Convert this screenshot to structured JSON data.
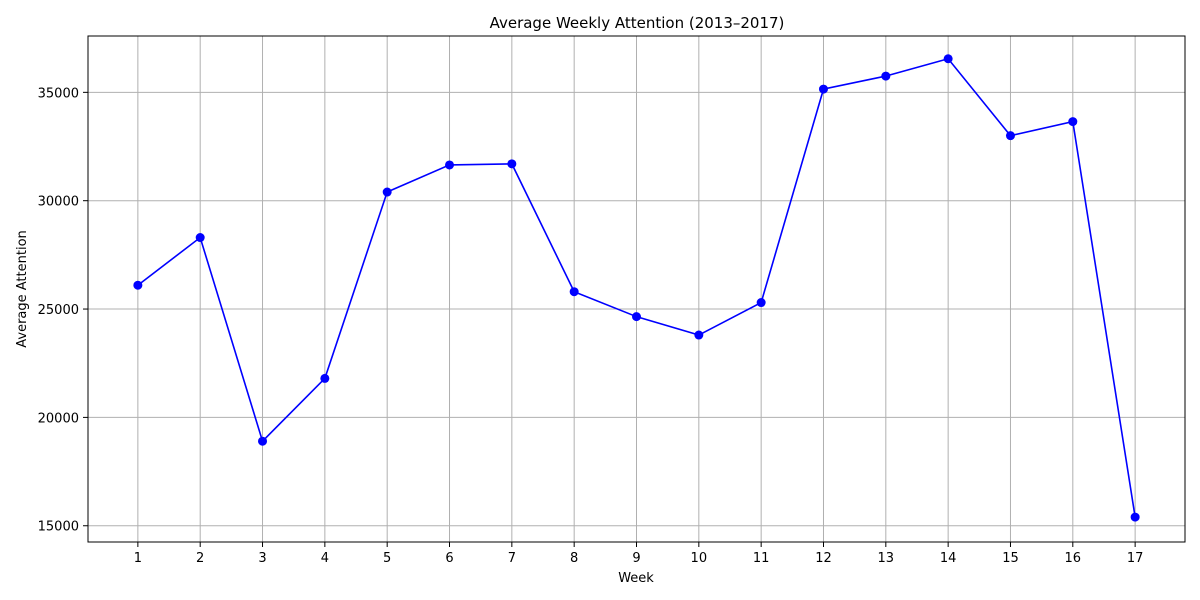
{
  "chart_data": {
    "type": "line",
    "title": "Average Weekly Attention (2013–2017)",
    "xlabel": "Week",
    "ylabel": "Average Attention",
    "x": [
      1,
      2,
      3,
      4,
      5,
      6,
      7,
      8,
      9,
      10,
      11,
      12,
      13,
      14,
      15,
      16,
      17
    ],
    "x_tick_labels": [
      "1",
      "2",
      "3",
      "4",
      "5",
      "6",
      "7",
      "8",
      "9",
      "10",
      "11",
      "12",
      "13",
      "14",
      "15",
      "16",
      "17"
    ],
    "series": [
      {
        "values": [
          26100,
          28300,
          18900,
          21800,
          30400,
          31650,
          31700,
          25800,
          24650,
          23800,
          25300,
          35150,
          35750,
          36550,
          33000,
          33650,
          15400
        ],
        "color": "#0000ff",
        "marker": "circle"
      }
    ],
    "y_ticks": [
      15000,
      20000,
      25000,
      30000,
      35000
    ],
    "y_tick_labels": [
      "15000",
      "20000",
      "25000",
      "30000",
      "35000"
    ],
    "xlim": [
      0.2,
      17.8
    ],
    "ylim": [
      14250,
      37600
    ],
    "grid": true,
    "grid_color": "#b0b0b0"
  }
}
